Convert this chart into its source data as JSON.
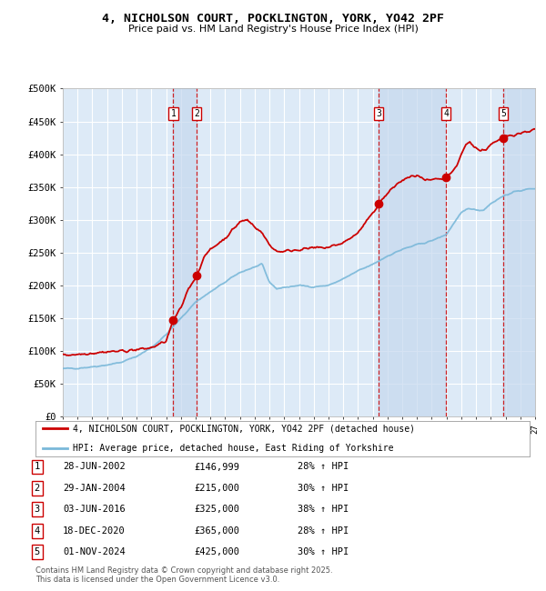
{
  "title": "4, NICHOLSON COURT, POCKLINGTON, YORK, YO42 2PF",
  "subtitle": "Price paid vs. HM Land Registry's House Price Index (HPI)",
  "ylim": [
    0,
    500000
  ],
  "yticks": [
    0,
    50000,
    100000,
    150000,
    200000,
    250000,
    300000,
    350000,
    400000,
    450000,
    500000
  ],
  "ytick_labels": [
    "£0",
    "£50K",
    "£100K",
    "£150K",
    "£200K",
    "£250K",
    "£300K",
    "£350K",
    "£400K",
    "£450K",
    "£500K"
  ],
  "xlim_start": 1995.0,
  "xlim_end": 2027.0,
  "sale_dates": [
    2002.49,
    2004.08,
    2016.42,
    2020.96,
    2024.84
  ],
  "sale_prices": [
    146999,
    215000,
    325000,
    365000,
    425000
  ],
  "sale_labels": [
    "1",
    "2",
    "3",
    "4",
    "5"
  ],
  "hpi_color": "#7ab8d9",
  "price_color": "#cc0000",
  "legend_line1": "4, NICHOLSON COURT, POCKLINGTON, YORK, YO42 2PF (detached house)",
  "legend_line2": "HPI: Average price, detached house, East Riding of Yorkshire",
  "table_entries": [
    [
      "1",
      "28-JUN-2002",
      "£146,999",
      "28% ↑ HPI"
    ],
    [
      "2",
      "29-JAN-2004",
      "£215,000",
      "30% ↑ HPI"
    ],
    [
      "3",
      "03-JUN-2016",
      "£325,000",
      "38% ↑ HPI"
    ],
    [
      "4",
      "18-DEC-2020",
      "£365,000",
      "28% ↑ HPI"
    ],
    [
      "5",
      "01-NOV-2024",
      "£425,000",
      "30% ↑ HPI"
    ]
  ],
  "footnote": "Contains HM Land Registry data © Crown copyright and database right 2025.\nThis data is licensed under the Open Government Licence v3.0.",
  "background_chart": "#ddeaf7",
  "background_fig": "#ffffff",
  "grid_color": "#ffffff",
  "dashed_line_color": "#cc0000",
  "shade_color": "#c8d8f0"
}
